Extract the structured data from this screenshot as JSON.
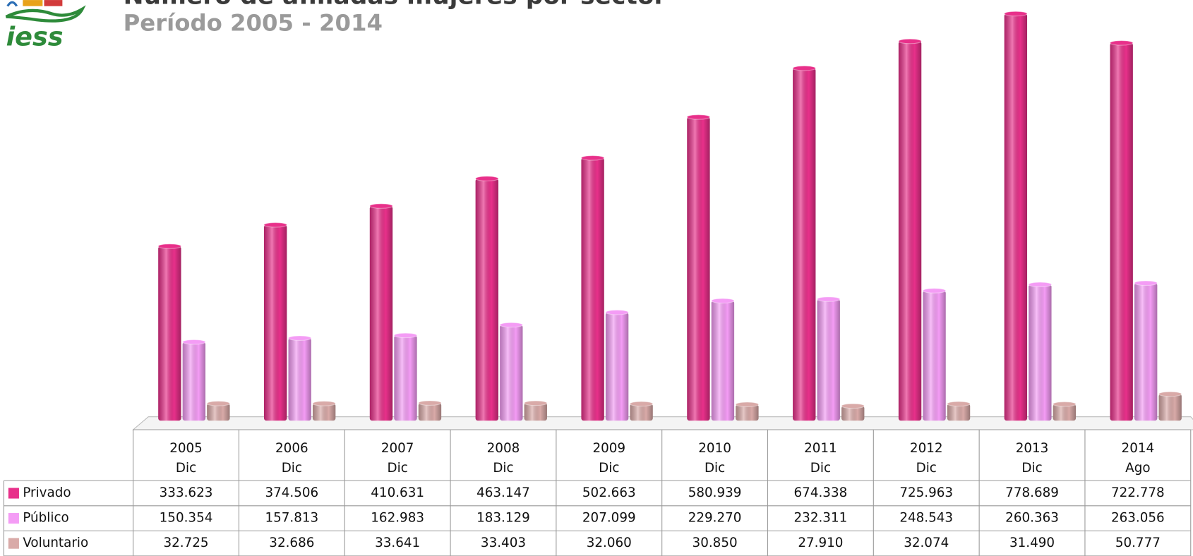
{
  "logo": {
    "text": "iess"
  },
  "chart_data": {
    "type": "bar",
    "title": "Número de afiliadas mujeres por sector",
    "subtitle": "Período 2005 - 2014",
    "categories": [
      [
        "2005",
        "Dic"
      ],
      [
        "2006",
        "Dic"
      ],
      [
        "2007",
        "Dic"
      ],
      [
        "2008",
        "Dic"
      ],
      [
        "2009",
        "Dic"
      ],
      [
        "2010",
        "Dic"
      ],
      [
        "2011",
        "Dic"
      ],
      [
        "2012",
        "Dic"
      ],
      [
        "2013",
        "Dic"
      ],
      [
        "2014",
        "Ago"
      ]
    ],
    "series": [
      {
        "name": "Privado",
        "color": "#e8308a",
        "values": [
          333623,
          374506,
          410631,
          463147,
          502663,
          580939,
          674338,
          725963,
          778689,
          722778
        ],
        "value_labels": [
          "333.623",
          "374.506",
          "410.631",
          "463.147",
          "502.663",
          "580.939",
          "674.338",
          "725.963",
          "778.689",
          "722.778"
        ]
      },
      {
        "name": "Público",
        "color": "#f49cf5",
        "values": [
          150354,
          157813,
          162983,
          183129,
          207099,
          229270,
          232311,
          248543,
          260363,
          263056
        ],
        "value_labels": [
          "150.354",
          "157.813",
          "162.983",
          "183.129",
          "207.099",
          "229.270",
          "232.311",
          "248.543",
          "260.363",
          "263.056"
        ]
      },
      {
        "name": "Voluntario",
        "color": "#d9aaa8",
        "values": [
          32725,
          32686,
          33641,
          33403,
          32060,
          30850,
          27910,
          32074,
          31490,
          50777
        ],
        "value_labels": [
          "32.725",
          "32.686",
          "33.641",
          "33.403",
          "32.060",
          "30.850",
          "27.910",
          "32.074",
          "31.490",
          "50.777"
        ]
      }
    ]
  }
}
